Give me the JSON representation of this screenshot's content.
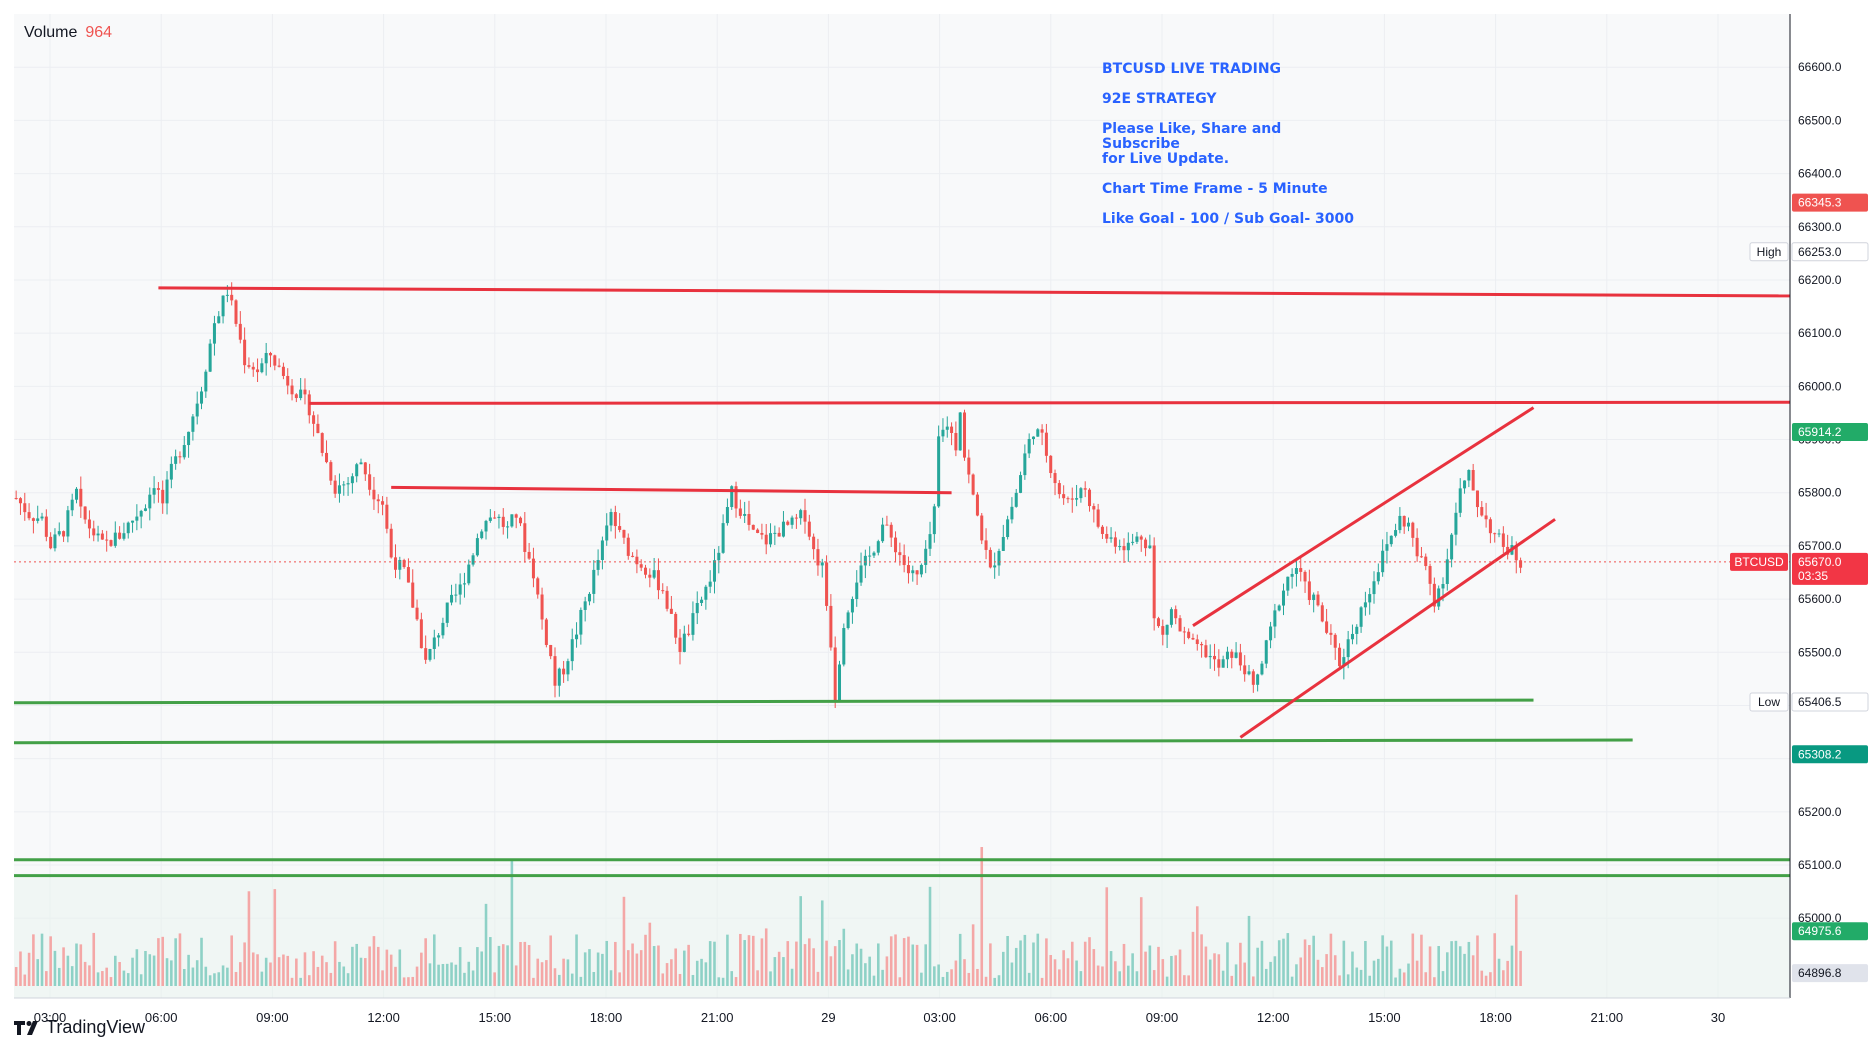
{
  "volume": {
    "label": "Volume",
    "value": "964"
  },
  "annotation": {
    "line1": "BTCUSD LIVE TRADING",
    "line2": "92E  STRATEGY",
    "line3": "Please Like, Share and Subscribe\nfor Live Update.",
    "line4": "Chart Time Frame - 5 Minute",
    "line5": "Like Goal - 100 / Sub Goal- 3000"
  },
  "branding": {
    "name": "TradingView",
    "icon": "tradingview-logo-icon"
  },
  "colors": {
    "up": "#26a69a",
    "down": "#ef5350",
    "resistance": "#e8323e",
    "support": "#43a047",
    "annotation": "#2962ff",
    "bg": "#f8f9fa",
    "grid": "#eceef2"
  },
  "chart_data": {
    "type": "candlestick",
    "symbol": "BTCUSD",
    "timeframe": "5 Minute",
    "ylim": [
      64850,
      66700
    ],
    "y_ticks": [
      66600,
      66500,
      66400,
      66300,
      66200,
      66100,
      66000,
      65900,
      65800,
      65700,
      65600,
      65500,
      65400,
      65300,
      65200,
      65100,
      65000
    ],
    "x_ticks": [
      "03:00",
      "06:00",
      "09:00",
      "12:00",
      "15:00",
      "18:00",
      "21:00",
      "29",
      "03:00",
      "06:00",
      "09:00",
      "12:00",
      "15:00",
      "18:00",
      "21:00",
      "30"
    ],
    "price_labels": [
      {
        "value": 66345.3,
        "text": "66345.3",
        "kind": "red"
      },
      {
        "value": 66253.0,
        "text": "66253.0",
        "tag": "High",
        "kind": "plain"
      },
      {
        "value": 65914.2,
        "text": "65914.2",
        "kind": "green"
      },
      {
        "value": 65670.0,
        "text": "65670.0",
        "countdown": "03:35",
        "symbol_tag": "BTCUSD",
        "kind": "last"
      },
      {
        "value": 65406.5,
        "text": "65406.5",
        "tag": "Low",
        "kind": "plain"
      },
      {
        "value": 65308.2,
        "text": "65308.2",
        "kind": "teal"
      },
      {
        "value": 64975.6,
        "text": "64975.6",
        "kind": "green"
      },
      {
        "value": 64896.8,
        "text": "64896.8",
        "kind": "gray"
      }
    ],
    "price_path": [
      [
        0,
        65790
      ],
      [
        3,
        65760
      ],
      [
        6,
        65750
      ],
      [
        8,
        65700
      ],
      [
        11,
        65730
      ],
      [
        14,
        65800
      ],
      [
        15,
        65760
      ],
      [
        20,
        65700
      ],
      [
        24,
        65720
      ],
      [
        30,
        65780
      ],
      [
        32,
        65820
      ],
      [
        34,
        65780
      ],
      [
        36,
        65840
      ],
      [
        40,
        65920
      ],
      [
        43,
        66000
      ],
      [
        46,
        66120
      ],
      [
        49,
        66180
      ],
      [
        51,
        66120
      ],
      [
        53,
        66050
      ],
      [
        56,
        66030
      ],
      [
        59,
        66060
      ],
      [
        62,
        66020
      ],
      [
        65,
        65990
      ],
      [
        68,
        65960
      ],
      [
        71,
        65880
      ],
      [
        74,
        65810
      ],
      [
        77,
        65820
      ],
      [
        80,
        65860
      ],
      [
        83,
        65800
      ],
      [
        85,
        65780
      ],
      [
        87,
        65680
      ],
      [
        90,
        65650
      ],
      [
        93,
        65560
      ],
      [
        95,
        65480
      ],
      [
        97,
        65520
      ],
      [
        100,
        65580
      ],
      [
        103,
        65620
      ],
      [
        106,
        65690
      ],
      [
        108,
        65740
      ],
      [
        111,
        65760
      ],
      [
        114,
        65730
      ],
      [
        116,
        65760
      ],
      [
        118,
        65700
      ],
      [
        120,
        65650
      ],
      [
        122,
        65560
      ],
      [
        124,
        65490
      ],
      [
        125,
        65440
      ],
      [
        127,
        65470
      ],
      [
        130,
        65540
      ],
      [
        133,
        65620
      ],
      [
        136,
        65700
      ],
      [
        138,
        65760
      ],
      [
        140,
        65720
      ],
      [
        143,
        65680
      ],
      [
        146,
        65660
      ],
      [
        150,
        65620
      ],
      [
        152,
        65560
      ],
      [
        154,
        65510
      ],
      [
        156,
        65540
      ],
      [
        159,
        65600
      ],
      [
        162,
        65660
      ],
      [
        164,
        65730
      ],
      [
        166,
        65800
      ],
      [
        168,
        65770
      ],
      [
        171,
        65720
      ],
      [
        174,
        65710
      ],
      [
        177,
        65730
      ],
      [
        180,
        65740
      ],
      [
        183,
        65760
      ],
      [
        185,
        65690
      ],
      [
        187,
        65660
      ],
      [
        189,
        65520
      ],
      [
        190,
        65420
      ],
      [
        192,
        65560
      ],
      [
        195,
        65640
      ],
      [
        198,
        65680
      ],
      [
        201,
        65740
      ],
      [
        204,
        65700
      ],
      [
        207,
        65650
      ],
      [
        209,
        65640
      ],
      [
        211,
        65680
      ],
      [
        213,
        65760
      ],
      [
        214,
        65900
      ],
      [
        216,
        65930
      ],
      [
        218,
        65890
      ],
      [
        219,
        65960
      ],
      [
        220,
        65870
      ],
      [
        222,
        65790
      ],
      [
        224,
        65720
      ],
      [
        226,
        65650
      ],
      [
        228,
        65700
      ],
      [
        230,
        65750
      ],
      [
        232,
        65800
      ],
      [
        234,
        65870
      ],
      [
        236,
        65920
      ],
      [
        238,
        65900
      ],
      [
        240,
        65850
      ],
      [
        242,
        65800
      ],
      [
        244,
        65780
      ],
      [
        246,
        65800
      ],
      [
        248,
        65810
      ],
      [
        250,
        65760
      ],
      [
        252,
        65720
      ],
      [
        255,
        65710
      ],
      [
        258,
        65700
      ],
      [
        261,
        65720
      ],
      [
        263,
        65700
      ],
      [
        264,
        65560
      ],
      [
        266,
        65530
      ],
      [
        268,
        65580
      ],
      [
        270,
        65540
      ],
      [
        273,
        65510
      ],
      [
        276,
        65500
      ],
      [
        279,
        65470
      ],
      [
        282,
        65500
      ],
      [
        285,
        65470
      ],
      [
        287,
        65430
      ],
      [
        289,
        65480
      ],
      [
        291,
        65540
      ],
      [
        293,
        65600
      ],
      [
        295,
        65640
      ],
      [
        297,
        65660
      ],
      [
        299,
        65620
      ],
      [
        301,
        65600
      ],
      [
        303,
        65560
      ],
      [
        305,
        65520
      ],
      [
        307,
        65480
      ],
      [
        309,
        65520
      ],
      [
        311,
        65560
      ],
      [
        313,
        65600
      ],
      [
        315,
        65640
      ],
      [
        317,
        65680
      ],
      [
        319,
        65720
      ],
      [
        321,
        65750
      ],
      [
        323,
        65740
      ],
      [
        325,
        65680
      ],
      [
        327,
        65660
      ],
      [
        329,
        65600
      ],
      [
        331,
        65640
      ],
      [
        333,
        65720
      ],
      [
        335,
        65800
      ],
      [
        337,
        65830
      ],
      [
        339,
        65780
      ],
      [
        341,
        65750
      ],
      [
        343,
        65720
      ],
      [
        345,
        65700
      ],
      [
        347,
        65690
      ],
      [
        349,
        65670
      ]
    ],
    "trend_lines": [
      {
        "role": "resistance",
        "points": [
          [
            33,
            66185
          ],
          [
            -1,
            66170
          ]
        ]
      },
      {
        "role": "resistance",
        "points": [
          [
            68,
            65968
          ],
          [
            -1,
            65970
          ]
        ]
      },
      {
        "role": "resistance",
        "points": [
          [
            87,
            65810
          ],
          [
            217,
            65800
          ]
        ]
      },
      {
        "role": "support",
        "points": [
          [
            0,
            65405
          ],
          [
            352,
            65410
          ]
        ]
      },
      {
        "role": "support",
        "points": [
          [
            0,
            65330
          ],
          [
            375,
            65335
          ]
        ]
      },
      {
        "role": "support",
        "points": [
          [
            0,
            65110
          ],
          [
            -1,
            65110
          ]
        ]
      },
      {
        "role": "support",
        "points": [
          [
            0,
            65080
          ],
          [
            -1,
            65080
          ]
        ]
      },
      {
        "role": "channel",
        "points": [
          [
            273,
            65550
          ],
          [
            352,
            65960
          ]
        ]
      },
      {
        "role": "channel",
        "points": [
          [
            284,
            65340
          ],
          [
            357,
            65750
          ]
        ]
      }
    ]
  }
}
